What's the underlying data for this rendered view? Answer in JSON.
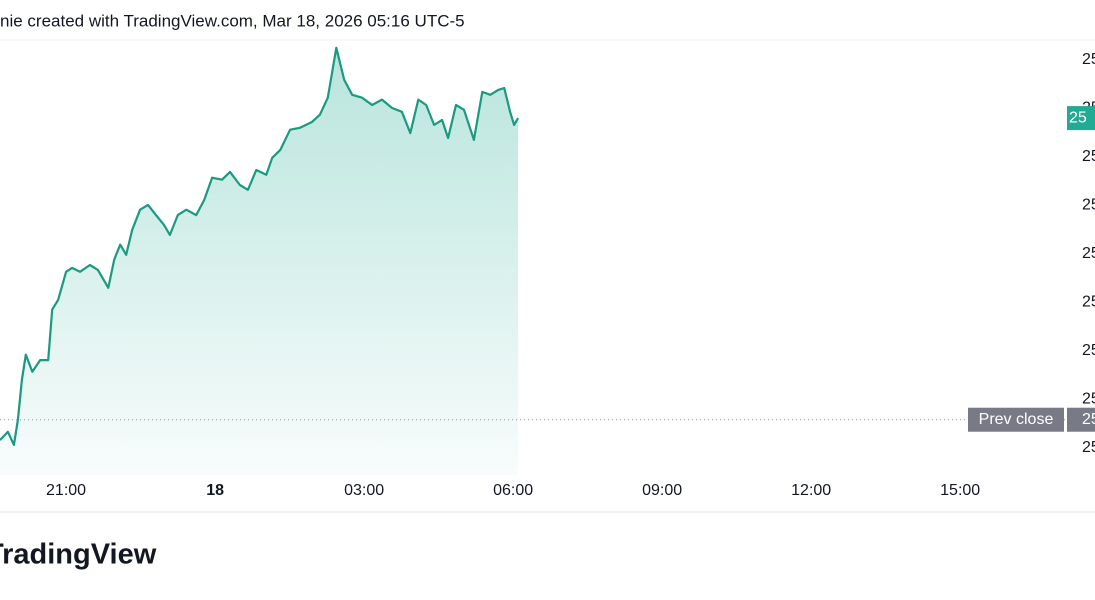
{
  "chart_data": {
    "type": "line",
    "header": "nie created with TradingView.com, Mar 18, 2026 05:16 UTC-5",
    "brand": "TradingView",
    "x": [
      -1.33,
      -1.17,
      -1.05,
      -0.97,
      -0.89,
      -0.81,
      -0.68,
      -0.52,
      -0.36,
      -0.28,
      -0.16,
      0,
      0.12,
      0.28,
      0.48,
      0.64,
      0.85,
      0.97,
      1.09,
      1.21,
      1.33,
      1.49,
      1.65,
      1.81,
      1.97,
      2.09,
      2.25,
      2.42,
      2.62,
      2.78,
      2.94,
      3.14,
      3.3,
      3.5,
      3.66,
      3.83,
      4.03,
      4.15,
      4.31,
      4.51,
      4.71,
      4.95,
      5.11,
      5.27,
      5.44,
      5.6,
      5.76,
      5.96,
      6.16,
      6.36,
      6.56,
      6.76,
      6.93,
      7.09,
      7.25,
      7.41,
      7.57,
      7.69,
      7.85,
      8.01,
      8.21,
      8.38,
      8.54,
      8.7,
      8.82,
      8.94,
      9.02,
      9.1
    ],
    "values": [
      0.16,
      0.33,
      0.06,
      0.58,
      1.4,
      1.92,
      1.57,
      1.81,
      1.81,
      2.85,
      3.05,
      3.63,
      3.71,
      3.63,
      3.77,
      3.67,
      3.3,
      3.88,
      4.19,
      3.98,
      4.49,
      4.91,
      5.01,
      4.8,
      4.6,
      4.39,
      4.8,
      4.91,
      4.8,
      5.11,
      5.57,
      5.53,
      5.69,
      5.42,
      5.32,
      5.73,
      5.63,
      5.98,
      6.14,
      6.56,
      6.6,
      6.72,
      6.87,
      7.22,
      8.25,
      7.59,
      7.28,
      7.22,
      7.07,
      7.18,
      7.01,
      6.93,
      6.49,
      7.18,
      7.07,
      6.66,
      6.76,
      6.39,
      7.07,
      6.97,
      6.35,
      7.34,
      7.28,
      7.38,
      7.42,
      6.93,
      6.66,
      6.8
    ],
    "color": "#1a9a80",
    "xlim": [
      -1.33,
      20.11
    ],
    "xticks": [
      {
        "value": 0,
        "label": "21:00"
      },
      {
        "value": 3,
        "label": "18"
      },
      {
        "value": 6,
        "label": "03:00"
      },
      {
        "value": 9,
        "label": "06:00"
      },
      {
        "value": 12,
        "label": "09:00"
      },
      {
        "value": 15,
        "label": "12:00"
      },
      {
        "value": 18,
        "label": "15:00"
      }
    ],
    "ylim": [
      -0.56,
      8.41
    ],
    "yticks": [
      {
        "value": 0,
        "label": "25"
      },
      {
        "value": 1,
        "label": "25"
      },
      {
        "value": 2,
        "label": "25"
      },
      {
        "value": 3,
        "label": "25"
      },
      {
        "value": 4,
        "label": "25"
      },
      {
        "value": 5,
        "label": "25"
      },
      {
        "value": 6,
        "label": "25"
      },
      {
        "value": 7,
        "label": "25"
      },
      {
        "value": 8,
        "label": "25"
      }
    ],
    "last_price_label": "25",
    "prev_close": {
      "value": 0.58,
      "label": "25",
      "name": "Prev close"
    }
  }
}
